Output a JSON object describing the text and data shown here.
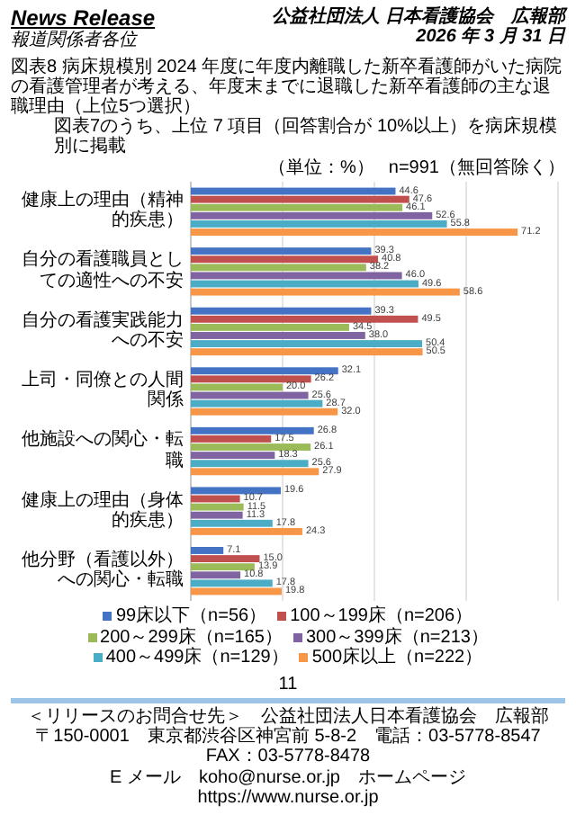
{
  "chart_data": {
    "type": "bar",
    "orientation": "horizontal",
    "title": "図表8 病床規模別 2024 年度に年度内離職した新卒看護師がいた病院の看護管理者が考える、年度末までに退職した新卒看護師の主な退職理由（上位5つ選択）",
    "subtitle": "図表7のうち、上位 7 項目（回答割合が 10%以上）を病床規模別に掲載",
    "annotations": [
      "News Release",
      "報道関係者各位",
      "公益社団法人 日本看護協会　広報部",
      "2026 年 3 月 31 日",
      "n=991（無回答除く）",
      "（単位：%）",
      "11",
      "＜リリースのお問合せ先＞　公益社団法人日本看護協会　広報部",
      "〒150-0001　東京都渋谷区神宮前 5-8-2　電話：03-5778-8547　FAX：03-5778-8478",
      "E メール　koho@nurse.or.jp　ホームページ　https://www.nurse.or.jp"
    ],
    "categories": [
      "健康上の理由（精神的疾患）",
      "自分の看護職員としての適性への不安",
      "自分の看護実践能力への不安",
      "上司・同僚との人間関係",
      "他施設への関心・転職",
      "健康上の理由（身体的疾患）",
      "他分野（看護以外）への関心・転職"
    ],
    "series": [
      {
        "name": "99床以下（n=56）",
        "color": "#4472c4",
        "values": [
          44.6,
          39.3,
          39.3,
          32.1,
          26.8,
          19.6,
          7.1
        ],
        "value_labels": [
          "44.6",
          "39.3",
          "39.3",
          "32.1",
          "26.8",
          "19.6",
          "7.1"
        ]
      },
      {
        "name": "100～199床（n=206）",
        "color": "#c0504d",
        "values": [
          47.6,
          40.8,
          49.5,
          26.2,
          17.5,
          10.7,
          15.0
        ],
        "value_labels": [
          "47.6",
          "40.8",
          "49.5",
          "26.2",
          "17.5",
          "10.7",
          "15.0"
        ]
      },
      {
        "name": "200～299床（n=165）",
        "color": "#9bbb59",
        "values": [
          46.1,
          38.2,
          34.5,
          20.0,
          26.1,
          11.5,
          13.9
        ],
        "value_labels": [
          "46.1",
          "38.2",
          "34.5",
          "20.0",
          "26.1",
          "11.5",
          "13.9"
        ]
      },
      {
        "name": "300～399床（n=213）",
        "color": "#8064a2",
        "values": [
          52.6,
          46.0,
          38.0,
          25.6,
          18.3,
          11.3,
          10.8
        ],
        "value_labels": [
          "52.6",
          "46.0",
          "38.0",
          "25.6",
          "18.3",
          "11.3",
          "10.8"
        ]
      },
      {
        "name": "400～499床（n=129）",
        "color": "#4bacc6",
        "values": [
          55.8,
          49.6,
          50.4,
          28.7,
          25.6,
          17.8,
          17.8
        ],
        "value_labels": [
          "55.8",
          "49.6",
          "50.4",
          "28.7",
          "25.6",
          "17.8",
          "17.8"
        ]
      },
      {
        "name": "500床以上（n=222）",
        "color": "#f79646",
        "values": [
          71.2,
          58.6,
          50.5,
          32.0,
          27.9,
          24.3,
          19.8
        ],
        "value_labels": [
          "71.2",
          "58.6",
          "50.5",
          "32.0",
          "27.9",
          "24.3",
          "19.8"
        ]
      }
    ],
    "xlim": [
      0,
      80
    ],
    "xticks": [
      {
        "value": 0,
        "label": null
      },
      {
        "value": 20,
        "label": null
      },
      {
        "value": 40,
        "label": null
      },
      {
        "value": 60,
        "label": null
      },
      {
        "value": 80,
        "label": null
      }
    ],
    "tick_labels": "y",
    "grid": "x",
    "legend": "bottom"
  }
}
